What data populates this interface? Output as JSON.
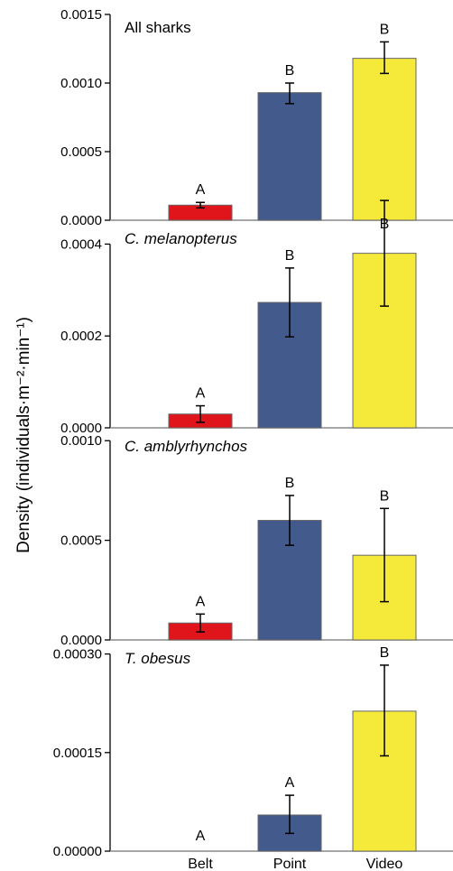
{
  "chart_data": {
    "type": "bar",
    "ylabel": "Density (individuals·m⁻²·min⁻¹)",
    "categories": [
      "Belt",
      "Point",
      "Video"
    ],
    "colors": {
      "Belt": "#e0141b",
      "Point": "#435a8c",
      "Video": "#f5e93a"
    },
    "panels": [
      {
        "title": "All sharks",
        "italic": false,
        "ylim": [
          0,
          0.0015
        ],
        "yticks": [
          "0.0000",
          "0.0005",
          "0.0010",
          "0.0015"
        ],
        "tick_values": [
          0,
          0.0005,
          0.001,
          0.0015
        ],
        "values": [
          0.00011,
          0.00093,
          0.00118
        ],
        "err_low": [
          9e-05,
          0.00085,
          0.00107
        ],
        "err_high": [
          0.00013,
          0.001,
          0.0013
        ],
        "letters": [
          "A",
          "B",
          "B"
        ]
      },
      {
        "title": "C. melanopterus",
        "italic": true,
        "ylim": [
          0,
          0.00045
        ],
        "yticks": [
          "0.0000",
          "0.0002",
          "0.0004"
        ],
        "tick_values": [
          0,
          0.0002,
          0.0004
        ],
        "values": [
          3e-05,
          0.000273,
          0.00038
        ],
        "err_low": [
          1.2e-05,
          0.000198,
          0.000265
        ],
        "err_high": [
          4.8e-05,
          0.000348,
          0.000495
        ],
        "letters": [
          "A",
          "B",
          "B"
        ]
      },
      {
        "title": "C. amblyrhynchos",
        "italic": true,
        "ylim": [
          0,
          0.00106
        ],
        "yticks": [
          "0.0000",
          "0.0005",
          "0.0010"
        ],
        "tick_values": [
          0,
          0.0005,
          0.001
        ],
        "values": [
          8.5e-05,
          0.0006,
          0.000425
        ],
        "err_low": [
          4e-05,
          0.000475,
          0.000192
        ],
        "err_high": [
          0.00013,
          0.000725,
          0.00066
        ],
        "letters": [
          "A",
          "B",
          "B"
        ]
      },
      {
        "title": "T. obesus",
        "italic": true,
        "ylim": [
          0,
          0.00032
        ],
        "yticks": [
          "0.00000",
          "0.00015",
          "0.00030"
        ],
        "tick_values": [
          0,
          0.00015,
          0.0003
        ],
        "values": [
          0,
          5.5e-05,
          0.000213
        ],
        "err_low": [
          null,
          2.7e-05,
          0.000145
        ],
        "err_high": [
          null,
          8.5e-05,
          0.000283
        ],
        "letters": [
          "A",
          "A",
          "B"
        ]
      }
    ]
  }
}
